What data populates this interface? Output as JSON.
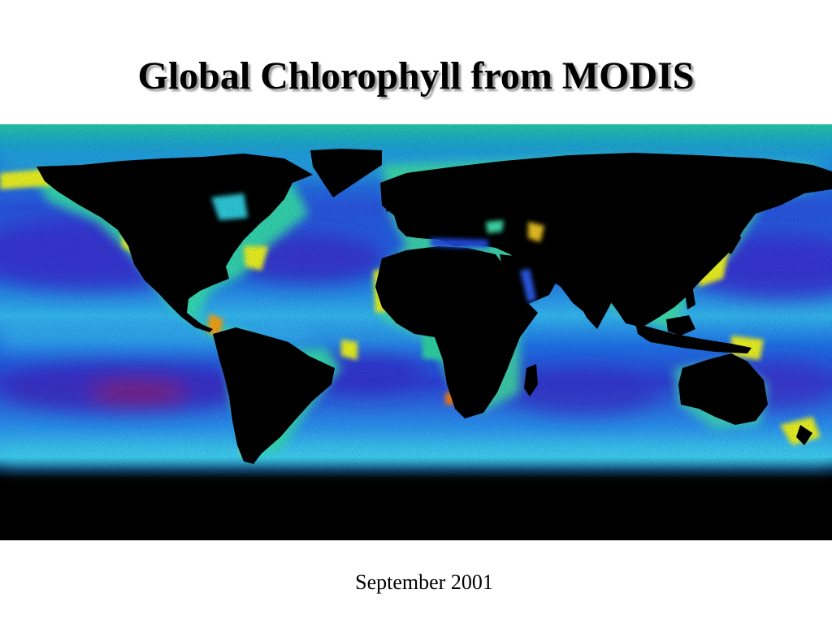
{
  "slide": {
    "title": "Global Chlorophyll from MODIS",
    "caption": "September 2001"
  },
  "map": {
    "type": "global chlorophyll concentration map",
    "projection": "equirectangular",
    "colors": {
      "land": "#000000",
      "oligotrophic_ocean": "#3a2fd6",
      "low": "#1f62e8",
      "medium": "#2fc0f2",
      "elevated": "#33e3a0",
      "high": "#e6f020",
      "very_high": "#f07a12",
      "extreme": "#d01818"
    }
  }
}
